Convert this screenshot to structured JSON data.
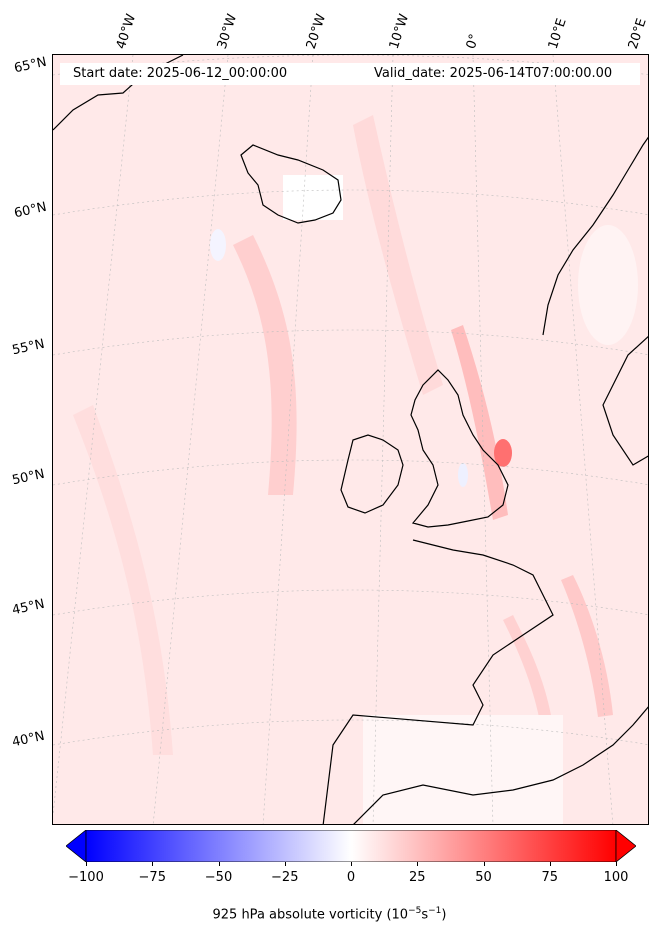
{
  "header": {
    "start": "Start date: 2025-06-12_00:00:00",
    "valid": "Valid_date: 2025-06-14T07:00:00.00"
  },
  "lon_labels": [
    "40°W",
    "30°W",
    "20°W",
    "10°W",
    "0°",
    "10°E",
    "20°E"
  ],
  "lat_labels": [
    "65°N",
    "60°N",
    "55°N",
    "50°N",
    "45°N",
    "40°N"
  ],
  "colorbar": {
    "label": "925 hPa absolute vorticity (10",
    "label_exp": "−5",
    "label_mid": "s",
    "label_exp2": "−1",
    "label_end": ")",
    "ticks": [
      "−100",
      "−75",
      "−50",
      "−25",
      "0",
      "25",
      "50",
      "75",
      "100"
    ],
    "min": -100,
    "max": 100,
    "low_color": "#0000ff",
    "mid_color": "#ffffff",
    "high_color": "#ff0000"
  },
  "style": {
    "land_outline": "#000000",
    "graticule": "#bdbdbd",
    "field_base": "#ffe9e9"
  }
}
